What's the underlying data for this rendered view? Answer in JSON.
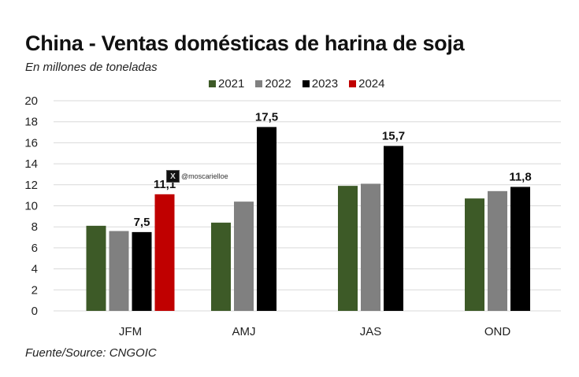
{
  "chart_data": {
    "type": "bar",
    "title": "China - Ventas domésticas de harina de soja",
    "subtitle": "En millones de toneladas",
    "xlabel": "",
    "ylabel": "",
    "ylim": [
      0,
      20
    ],
    "yticks": [
      0,
      2,
      4,
      6,
      8,
      10,
      12,
      14,
      16,
      18,
      20
    ],
    "grid": true,
    "legend_position": "top-center",
    "categories": [
      "JFM",
      "AMJ",
      "JAS",
      "OND"
    ],
    "series": [
      {
        "name": "2021",
        "color": "#3d5a27",
        "values": [
          8.1,
          8.4,
          11.9,
          10.7
        ]
      },
      {
        "name": "2022",
        "color": "#808080",
        "values": [
          7.6,
          10.4,
          12.1,
          11.4
        ]
      },
      {
        "name": "2023",
        "color": "#000000",
        "values": [
          7.5,
          17.5,
          15.7,
          11.8
        ]
      },
      {
        "name": "2024",
        "color": "#c00000",
        "values": [
          11.1,
          null,
          null,
          null
        ]
      }
    ],
    "data_labels": [
      {
        "series": "2023",
        "category": "JFM",
        "text": "7,5"
      },
      {
        "series": "2024",
        "category": "JFM",
        "text": "11,1"
      },
      {
        "series": "2023",
        "category": "AMJ",
        "text": "17,5"
      },
      {
        "series": "2023",
        "category": "JAS",
        "text": "15,7"
      },
      {
        "series": "2023",
        "category": "OND",
        "text": "11,8"
      }
    ],
    "source": "Fuente/Source: CNGOIC"
  },
  "watermark": {
    "icon": "x-logo-icon",
    "icon_glyph": "X",
    "handle": "@moscarielloe"
  }
}
